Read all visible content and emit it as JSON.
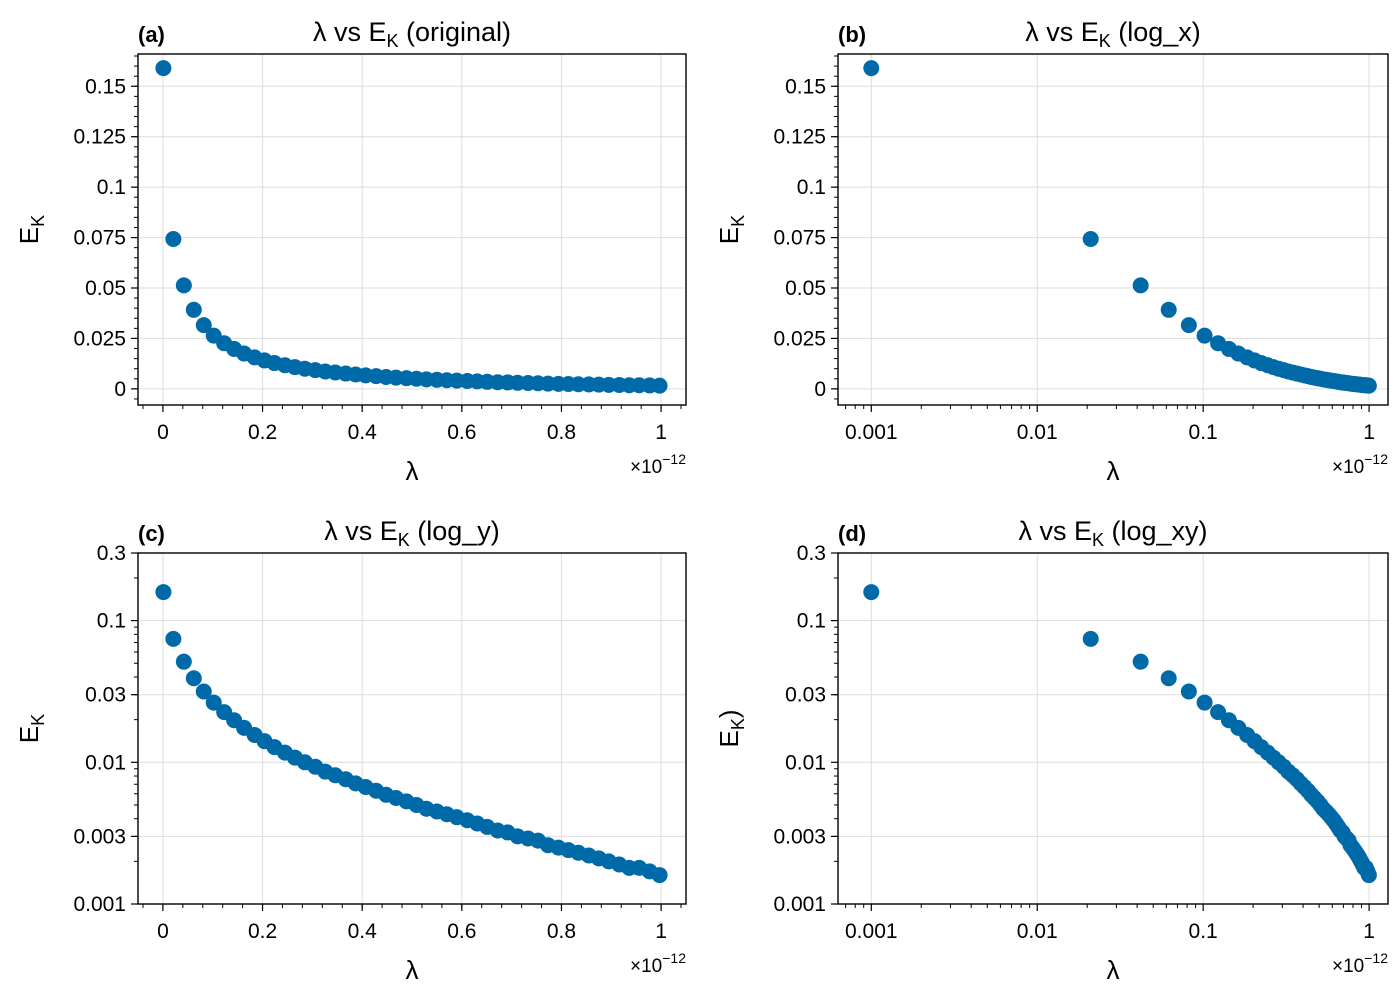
{
  "chart_data": [
    {
      "type": "scatter",
      "panel_label": "(a)",
      "title": "λ vs E_K (original)",
      "title_parts": {
        "pre": "λ vs E",
        "sub": "K",
        "post": " (original)"
      },
      "xlabel": "λ",
      "ylabel": "E_K",
      "ylabel_parts": {
        "pre": "E",
        "sub": "K",
        "post": ""
      },
      "xscale": "linear",
      "yscale": "linear",
      "xlim": [
        -0.05,
        1.05
      ],
      "ylim": [
        -0.008,
        0.166
      ],
      "x_offset_label": {
        "base": "×10",
        "exp": "−12"
      },
      "xticks": [
        {
          "v": 0,
          "label": "0"
        },
        {
          "v": 0.2,
          "label": "0.2"
        },
        {
          "v": 0.4,
          "label": "0.4"
        },
        {
          "v": 0.6,
          "label": "0.6"
        },
        {
          "v": 0.8,
          "label": "0.8"
        },
        {
          "v": 1,
          "label": "1"
        }
      ],
      "yticks": [
        {
          "v": 0,
          "label": "0"
        },
        {
          "v": 0.025,
          "label": "0.025"
        },
        {
          "v": 0.05,
          "label": "0.05"
        },
        {
          "v": 0.075,
          "label": "0.075"
        },
        {
          "v": 0.1,
          "label": "0.1"
        },
        {
          "v": 0.125,
          "label": "0.125"
        },
        {
          "v": 0.15,
          "label": "0.15"
        }
      ],
      "grid": true
    },
    {
      "type": "scatter",
      "panel_label": "(b)",
      "title": "λ vs E_K (log_x)",
      "title_parts": {
        "pre": "λ vs E",
        "sub": "K",
        "post": " (log_x)"
      },
      "xlabel": "λ",
      "ylabel": "E_K",
      "ylabel_parts": {
        "pre": "E",
        "sub": "K",
        "post": ""
      },
      "xscale": "log",
      "yscale": "linear",
      "xlim": [
        0.00063,
        1.3
      ],
      "ylim": [
        -0.008,
        0.166
      ],
      "x_offset_label": {
        "base": "×10",
        "exp": "−12"
      },
      "xticks": [
        {
          "v": 0.001,
          "label": "0.001"
        },
        {
          "v": 0.01,
          "label": "0.01"
        },
        {
          "v": 0.1,
          "label": "0.1"
        },
        {
          "v": 1,
          "label": "1"
        }
      ],
      "yticks": [
        {
          "v": 0,
          "label": "0"
        },
        {
          "v": 0.025,
          "label": "0.025"
        },
        {
          "v": 0.05,
          "label": "0.05"
        },
        {
          "v": 0.075,
          "label": "0.075"
        },
        {
          "v": 0.1,
          "label": "0.1"
        },
        {
          "v": 0.125,
          "label": "0.125"
        },
        {
          "v": 0.15,
          "label": "0.15"
        }
      ],
      "grid": true
    },
    {
      "type": "scatter",
      "panel_label": "(c)",
      "title": "λ vs E_K (log_y)",
      "title_parts": {
        "pre": "λ vs E",
        "sub": "K",
        "post": " (log_y)"
      },
      "xlabel": "λ",
      "ylabel": "E_K",
      "ylabel_parts": {
        "pre": "E",
        "sub": "K",
        "post": ""
      },
      "xscale": "linear",
      "yscale": "log",
      "xlim": [
        -0.05,
        1.05
      ],
      "ylim": [
        0.001,
        0.3
      ],
      "x_offset_label": {
        "base": "×10",
        "exp": "−12"
      },
      "xticks": [
        {
          "v": 0,
          "label": "0"
        },
        {
          "v": 0.2,
          "label": "0.2"
        },
        {
          "v": 0.4,
          "label": "0.4"
        },
        {
          "v": 0.6,
          "label": "0.6"
        },
        {
          "v": 0.8,
          "label": "0.8"
        },
        {
          "v": 1,
          "label": "1"
        }
      ],
      "yticks": [
        {
          "v": 0.001,
          "label": "0.001"
        },
        {
          "v": 0.003,
          "label": "0.003"
        },
        {
          "v": 0.01,
          "label": "0.01"
        },
        {
          "v": 0.03,
          "label": "0.03"
        },
        {
          "v": 0.1,
          "label": "0.1"
        },
        {
          "v": 0.3,
          "label": "0.3"
        }
      ],
      "grid": true
    },
    {
      "type": "scatter",
      "panel_label": "(d)",
      "title": "λ vs E_K (log_xy)",
      "title_parts": {
        "pre": "λ vs E",
        "sub": "K",
        "post": " (log_xy)"
      },
      "xlabel": "λ",
      "ylabel": "E_K)",
      "ylabel_parts": {
        "pre": "E",
        "sub": "K",
        "post": ")"
      },
      "xscale": "log",
      "yscale": "log",
      "xlim": [
        0.00063,
        1.3
      ],
      "ylim": [
        0.001,
        0.3
      ],
      "x_offset_label": {
        "base": "×10",
        "exp": "−12"
      },
      "xticks": [
        {
          "v": 0.001,
          "label": "0.001"
        },
        {
          "v": 0.01,
          "label": "0.01"
        },
        {
          "v": 0.1,
          "label": "0.1"
        },
        {
          "v": 1,
          "label": "1"
        }
      ],
      "yticks": [
        {
          "v": 0.001,
          "label": "0.001"
        },
        {
          "v": 0.003,
          "label": "0.003"
        },
        {
          "v": 0.01,
          "label": "0.01"
        },
        {
          "v": 0.03,
          "label": "0.03"
        },
        {
          "v": 0.1,
          "label": "0.1"
        },
        {
          "v": 0.3,
          "label": "0.3"
        }
      ],
      "grid": true
    }
  ],
  "series": {
    "x": [
      0.001,
      0.021,
      0.042,
      0.062,
      0.082,
      0.102,
      0.123,
      0.143,
      0.163,
      0.184,
      0.204,
      0.224,
      0.245,
      0.265,
      0.285,
      0.306,
      0.326,
      0.346,
      0.367,
      0.387,
      0.407,
      0.428,
      0.448,
      0.468,
      0.489,
      0.509,
      0.529,
      0.55,
      0.57,
      0.59,
      0.611,
      0.631,
      0.651,
      0.672,
      0.692,
      0.712,
      0.733,
      0.753,
      0.773,
      0.794,
      0.814,
      0.834,
      0.855,
      0.875,
      0.895,
      0.916,
      0.936,
      0.956,
      0.977,
      0.997
    ],
    "y": [
      0.159,
      0.0743,
      0.0513,
      0.0392,
      0.0316,
      0.0264,
      0.0226,
      0.0198,
      0.0175,
      0.0156,
      0.0141,
      0.0128,
      0.0117,
      0.0108,
      0.01,
      0.0093,
      0.0086,
      0.0081,
      0.0076,
      0.0071,
      0.0067,
      0.0063,
      0.0059,
      0.0056,
      0.0053,
      0.005,
      0.0047,
      0.0045,
      0.0043,
      0.0041,
      0.0039,
      0.0037,
      0.0035,
      0.0033,
      0.0032,
      0.003,
      0.0029,
      0.0028,
      0.0026,
      0.0025,
      0.0024,
      0.0023,
      0.0022,
      0.0021,
      0.002,
      0.0019,
      0.0018,
      0.0018,
      0.0017,
      0.0016
    ]
  },
  "style": {
    "marker_color": "#0069a8",
    "grid_color": "#dddddd",
    "axis_color": "#000000"
  }
}
